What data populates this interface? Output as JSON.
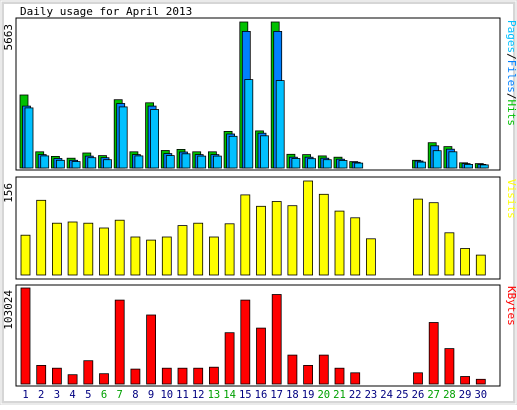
{
  "chart_data": {
    "type": "bar",
    "title": "Daily usage for April 2013",
    "days": [
      "1",
      "2",
      "3",
      "4",
      "5",
      "6",
      "7",
      "8",
      "9",
      "10",
      "11",
      "12",
      "13",
      "14",
      "15",
      "16",
      "17",
      "18",
      "19",
      "20",
      "21",
      "22",
      "23",
      "24",
      "25",
      "26",
      "27",
      "28",
      "29",
      "30"
    ],
    "weekend_days": [
      "6",
      "7",
      "13",
      "14",
      "20",
      "21",
      "27",
      "28"
    ],
    "colors": {
      "pages": "#00c0ff",
      "files": "#0080ff",
      "hits": "#00c000",
      "visits": "#ffff00",
      "kbytes": "#ff0000",
      "weekday_label": "#000080",
      "weekend_label": "#00a000",
      "border_light": "#ffffff",
      "border_dark": "#808080",
      "outer_bg": "#d6d6d6"
    },
    "panels": [
      {
        "name": "hits-panel",
        "max_label": "5663",
        "ylim": [
          0,
          5663
        ],
        "legend": [
          {
            "text": "Pages",
            "color": "#00c0ff"
          },
          {
            "text": "/",
            "color": "#000000"
          },
          {
            "text": "Files",
            "color": "#0080ff"
          },
          {
            "text": "/",
            "color": "#000000"
          },
          {
            "text": "Hits",
            "color": "#00c000"
          }
        ],
        "series": [
          {
            "name": "Hits",
            "color": "#00c000",
            "values": [
              2830,
              630,
              450,
              380,
              580,
              480,
              2650,
              630,
              2530,
              680,
              720,
              630,
              630,
              1420,
              5663,
              1440,
              5663,
              530,
              520,
              470,
              420,
              250,
              0,
              0,
              0,
              300,
              980,
              830,
              200,
              170
            ]
          },
          {
            "name": "Files",
            "color": "#0080ff",
            "values": [
              2400,
              520,
              370,
              300,
              460,
              400,
              2500,
              520,
              2400,
              560,
              620,
              520,
              520,
              1320,
              5300,
              1350,
              5300,
              420,
              420,
              380,
              340,
              220,
              0,
              0,
              0,
              270,
              860,
              730,
              170,
              140
            ]
          },
          {
            "name": "Pages",
            "color": "#00c0ff",
            "values": [
              2330,
              470,
              300,
              250,
              400,
              320,
              2370,
              470,
              2270,
              480,
              550,
              460,
              460,
              1230,
              3430,
              1250,
              3390,
              370,
              360,
              320,
              290,
              190,
              0,
              0,
              0,
              230,
              670,
              630,
              140,
              120
            ]
          }
        ]
      },
      {
        "name": "visits-panel",
        "max_label": "156",
        "ylim": [
          0,
          156
        ],
        "legend": [
          {
            "text": "Visits",
            "color": "#ffff00"
          }
        ],
        "series": [
          {
            "name": "Visits",
            "color": "#ffff00",
            "values": [
              66,
              124,
              86,
              88,
              86,
              78,
              91,
              63,
              58,
              63,
              82,
              86,
              63,
              85,
              133,
              114,
              122,
              115,
              156,
              134,
              106,
              95,
              60,
              0,
              0,
              126,
              120,
              70,
              44,
              33
            ]
          }
        ]
      },
      {
        "name": "kbytes-panel",
        "max_label": "103024",
        "ylim": [
          0,
          103024
        ],
        "legend": [
          {
            "text": "KBytes",
            "color": "#ff0000"
          }
        ],
        "series": [
          {
            "name": "KBytes",
            "color": "#ff0000",
            "values": [
              103024,
              20000,
              17000,
              10000,
              25000,
              11000,
              90000,
              16000,
              74000,
              17000,
              17000,
              17000,
              18000,
              55000,
              90000,
              60000,
              96000,
              31000,
              20000,
              31000,
              17000,
              12000,
              0,
              0,
              0,
              12000,
              66000,
              38000,
              8000,
              5000
            ]
          }
        ]
      }
    ]
  }
}
